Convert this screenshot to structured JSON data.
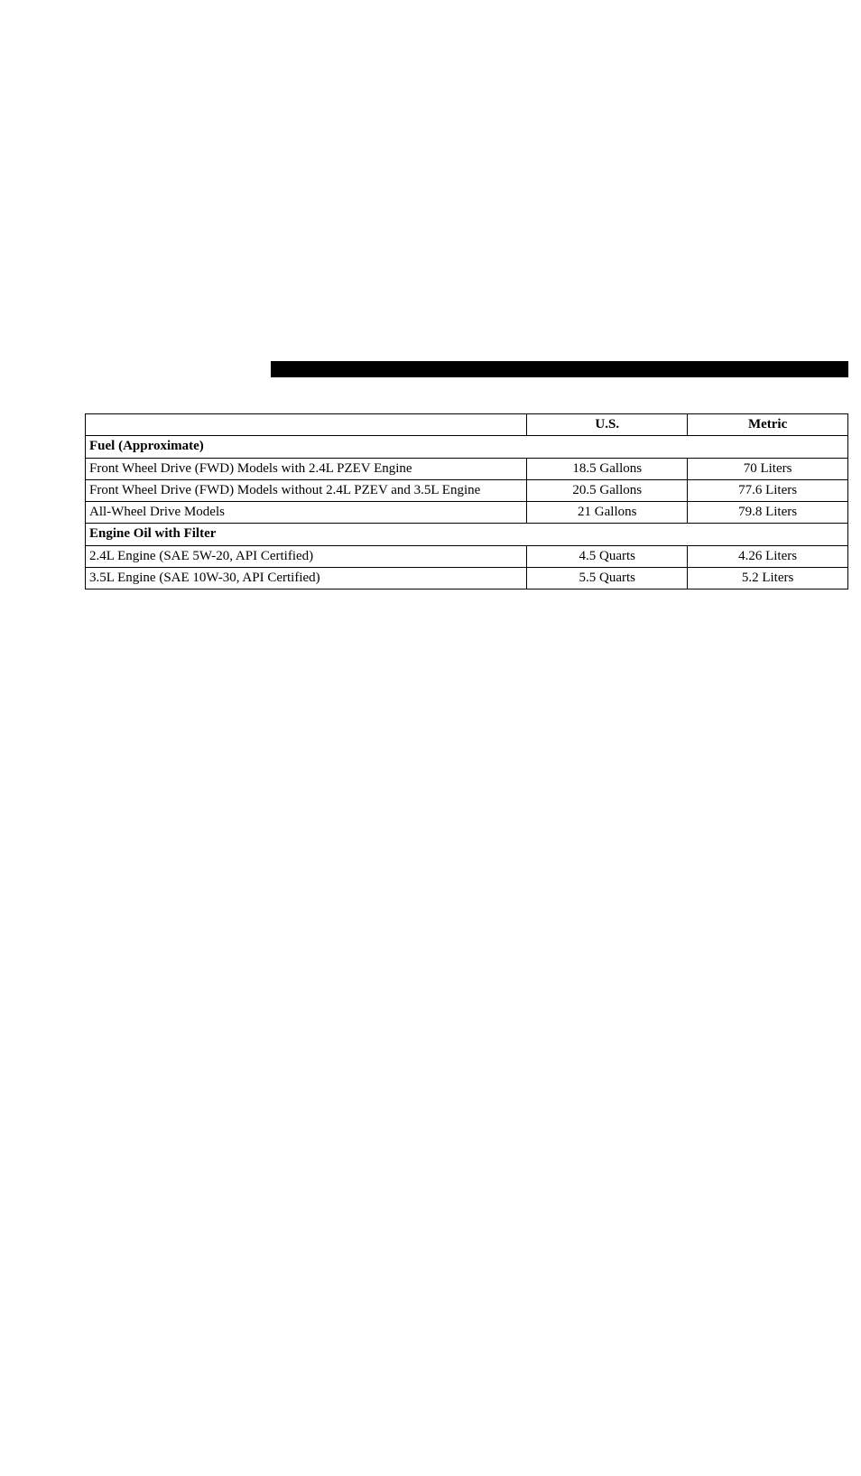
{
  "header_bar": {
    "color": "#000000"
  },
  "table": {
    "columns": {
      "blank": "",
      "us": "U.S.",
      "metric": "Metric"
    },
    "rows": [
      {
        "type": "section",
        "label": "Fuel (Approximate)"
      },
      {
        "type": "data",
        "label": "Front Wheel Drive (FWD) Models with 2.4L PZEV Engine",
        "us": "18.5 Gallons",
        "metric": "70 Liters"
      },
      {
        "type": "data",
        "label": "Front Wheel Drive (FWD) Models without 2.4L PZEV and 3.5L Engine",
        "us": "20.5 Gallons",
        "metric": "77.6 Liters"
      },
      {
        "type": "data",
        "label": "All-Wheel Drive Models",
        "us": "21 Gallons",
        "metric": "79.8 Liters"
      },
      {
        "type": "section",
        "label": "Engine Oil with Filter"
      },
      {
        "type": "data",
        "label": "2.4L Engine (SAE 5W-20, API Certified)",
        "us": "4.5 Quarts",
        "metric": "4.26 Liters"
      },
      {
        "type": "data",
        "label": "3.5L Engine (SAE 10W-30, API Certified)",
        "us": "5.5 Quarts",
        "metric": "5.2 Liters"
      }
    ]
  }
}
